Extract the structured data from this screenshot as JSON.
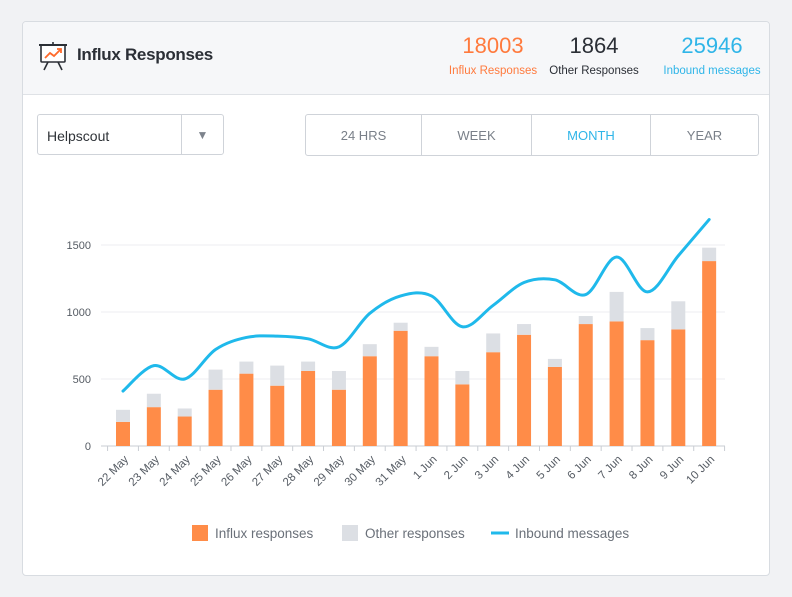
{
  "widget": {
    "title": "Influx Responses",
    "icon": "presentation-chart-icon"
  },
  "stats": [
    {
      "value": "18003",
      "label": "Influx Responses",
      "color": "#ff7a3d"
    },
    {
      "value": "1864",
      "label": "Other Responses",
      "color": "#2b2f36"
    },
    {
      "value": "25946",
      "label": "Inbound messages",
      "color": "#2fb5e8"
    }
  ],
  "source_select": {
    "value": "Helpscout"
  },
  "periods": {
    "tabs": [
      "24 HRS",
      "WEEK",
      "MONTH",
      "YEAR"
    ],
    "active": "MONTH"
  },
  "chart_data": {
    "type": "bar",
    "categories": [
      "22 May",
      "23 May",
      "24 May",
      "25 May",
      "26 May",
      "27 May",
      "28 May",
      "29 May",
      "30 May",
      "31 May",
      "1 Jun",
      "2 Jun",
      "3 Jun",
      "4 Jun",
      "5 Jun",
      "6 Jun",
      "7 Jun",
      "8 Jun",
      "9 Jun",
      "10 Jun"
    ],
    "series": [
      {
        "name": "Influx responses",
        "kind": "bar",
        "stack": "total",
        "color": "#ff8c48",
        "values": [
          180,
          290,
          220,
          420,
          540,
          450,
          560,
          420,
          670,
          860,
          670,
          460,
          700,
          830,
          590,
          910,
          930,
          790,
          870,
          1380
        ]
      },
      {
        "name": "Other responses",
        "kind": "bar",
        "stack": "total",
        "color": "#dcdfe4",
        "values": [
          90,
          100,
          60,
          150,
          90,
          150,
          70,
          140,
          90,
          60,
          70,
          100,
          140,
          80,
          60,
          60,
          220,
          90,
          210,
          100
        ]
      },
      {
        "name": "Inbound messages",
        "kind": "line",
        "color": "#1fb9eb",
        "values": [
          410,
          600,
          500,
          720,
          810,
          820,
          800,
          740,
          990,
          1120,
          1120,
          890,
          1050,
          1220,
          1240,
          1130,
          1410,
          1150,
          1420,
          1690
        ]
      }
    ],
    "yticks": [
      0,
      500,
      1000,
      1500
    ],
    "ylim": [
      0,
      1750
    ],
    "grid": true,
    "legend": "bottom"
  }
}
